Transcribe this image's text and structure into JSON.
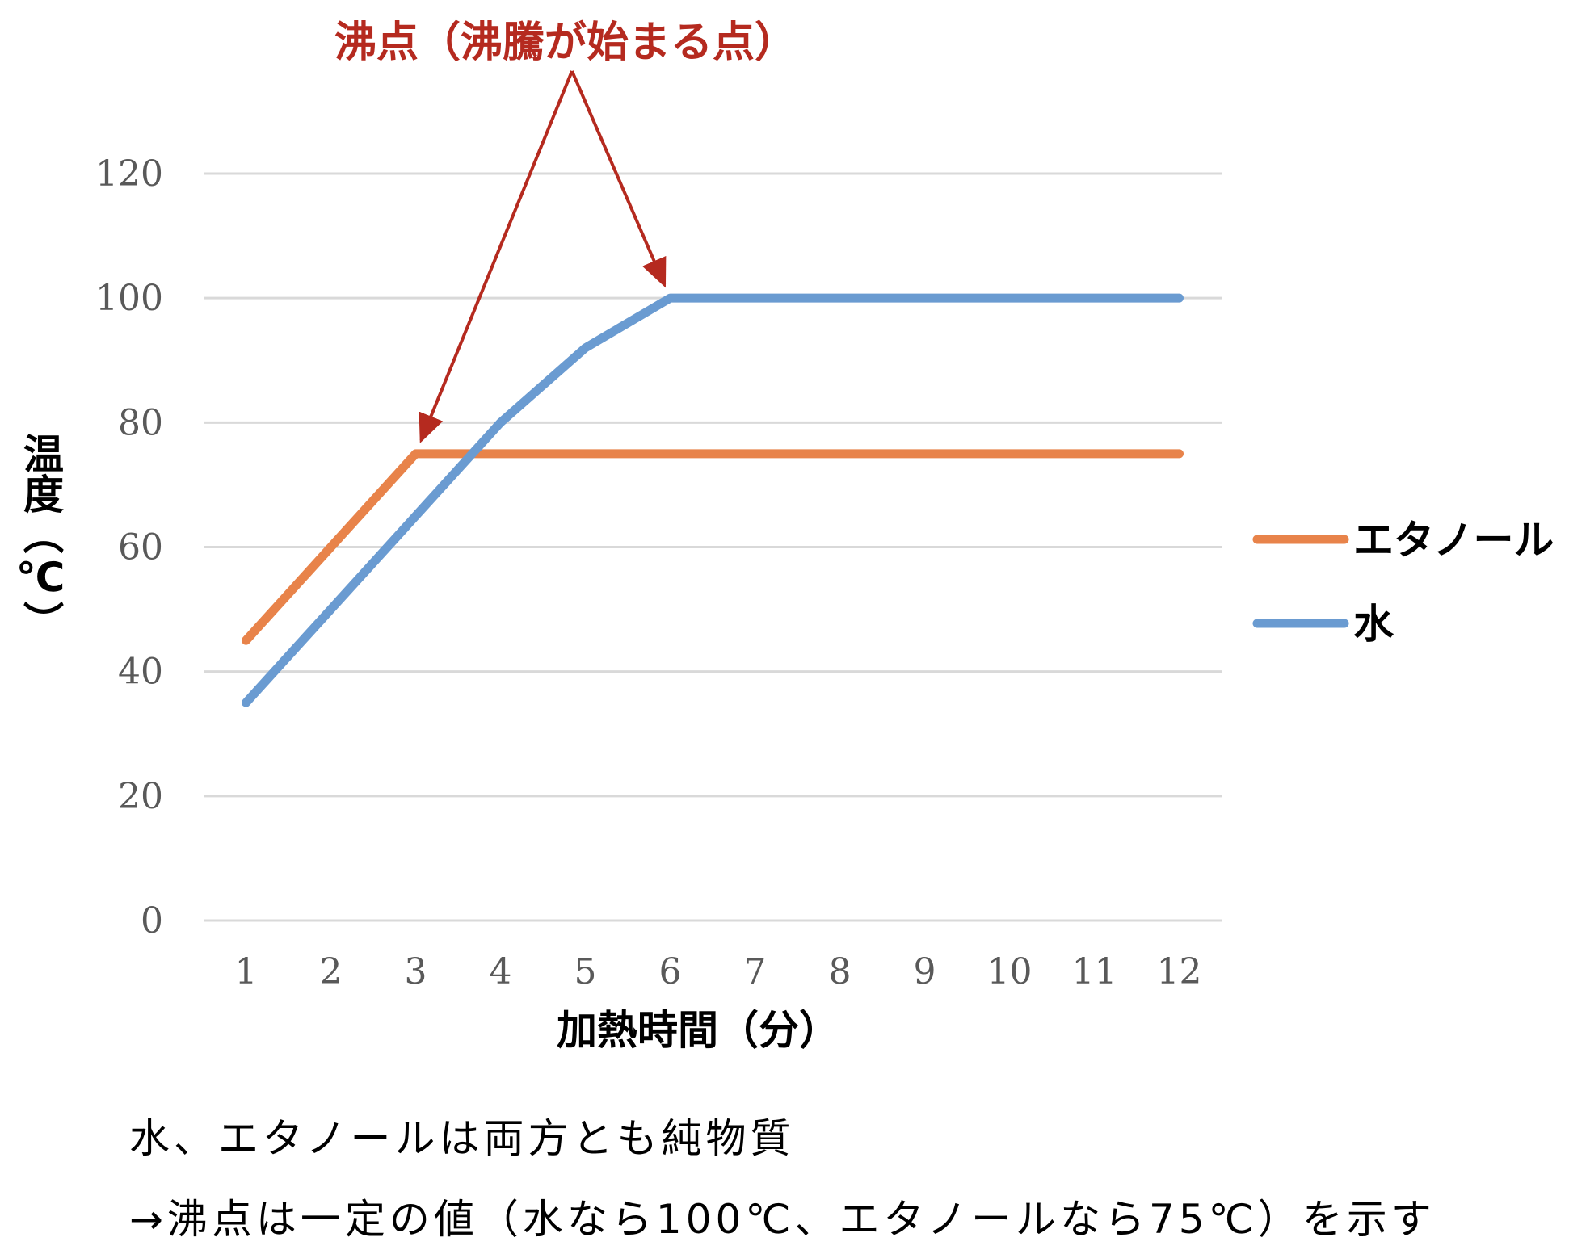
{
  "chart_data": {
    "type": "line",
    "categories": [
      "1",
      "2",
      "3",
      "4",
      "5",
      "6",
      "7",
      "8",
      "9",
      "10",
      "11",
      "12"
    ],
    "series": [
      {
        "name": "エタノール",
        "values": [
          45,
          60,
          75,
          75,
          75,
          75,
          75,
          75,
          75,
          75,
          75,
          75
        ],
        "color": "#E8834A"
      },
      {
        "name": "水",
        "values": [
          35,
          50,
          65,
          80,
          92,
          100,
          100,
          100,
          100,
          100,
          100,
          100
        ],
        "color": "#6A9BD1"
      }
    ],
    "title": "",
    "xlabel": "加熱時間（分）",
    "ylabel": "温度（℃）",
    "ylim": [
      0,
      120
    ],
    "yticks": [
      0,
      20,
      40,
      60,
      80,
      100,
      120
    ],
    "grid": true,
    "legend_position": "right",
    "annotation": {
      "text": "沸点（沸騰が始まる点）",
      "color": "#B52A1F",
      "targets": [
        {
          "series": "エタノール",
          "category": "3"
        },
        {
          "series": "水",
          "category": "6"
        }
      ]
    }
  },
  "notes": {
    "line1": "水、エタノールは両方とも純物質",
    "line2": "→沸点は一定の値（水なら100℃、エタノールなら75℃）を示す"
  }
}
